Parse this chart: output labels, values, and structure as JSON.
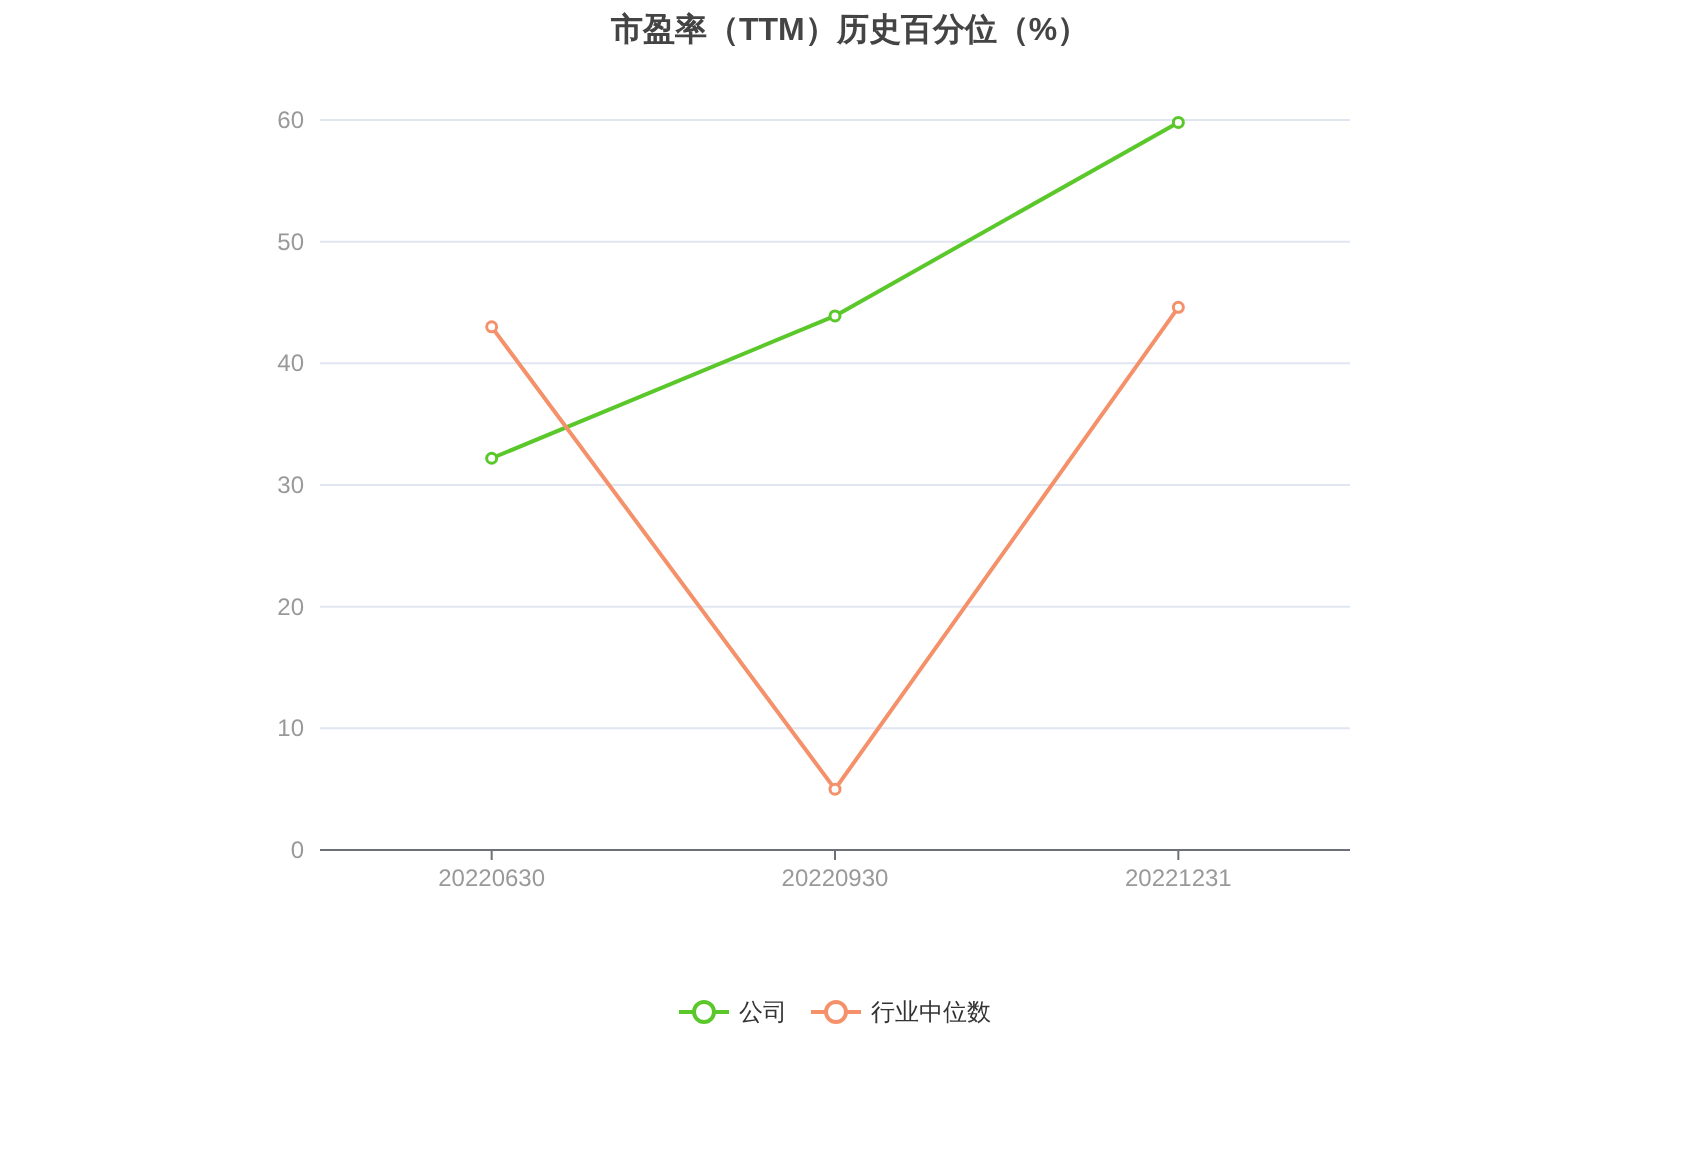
{
  "chart_data": {
    "type": "line",
    "title": "市盈率（TTM）历史百分位（%）",
    "categories": [
      "20220630",
      "20220930",
      "20221231"
    ],
    "series": [
      {
        "name": "公司",
        "color": "#5ac82a",
        "values": [
          32.2,
          43.9,
          59.8
        ]
      },
      {
        "name": "行业中位数",
        "color": "#f5916a",
        "values": [
          43.0,
          5.0,
          44.6
        ]
      }
    ],
    "ylim": [
      0,
      60
    ],
    "yticks": [
      0,
      10,
      20,
      30,
      40,
      50,
      60
    ],
    "grid": "y",
    "legend": "bottom",
    "marker": "circle",
    "line_style": "solid"
  }
}
